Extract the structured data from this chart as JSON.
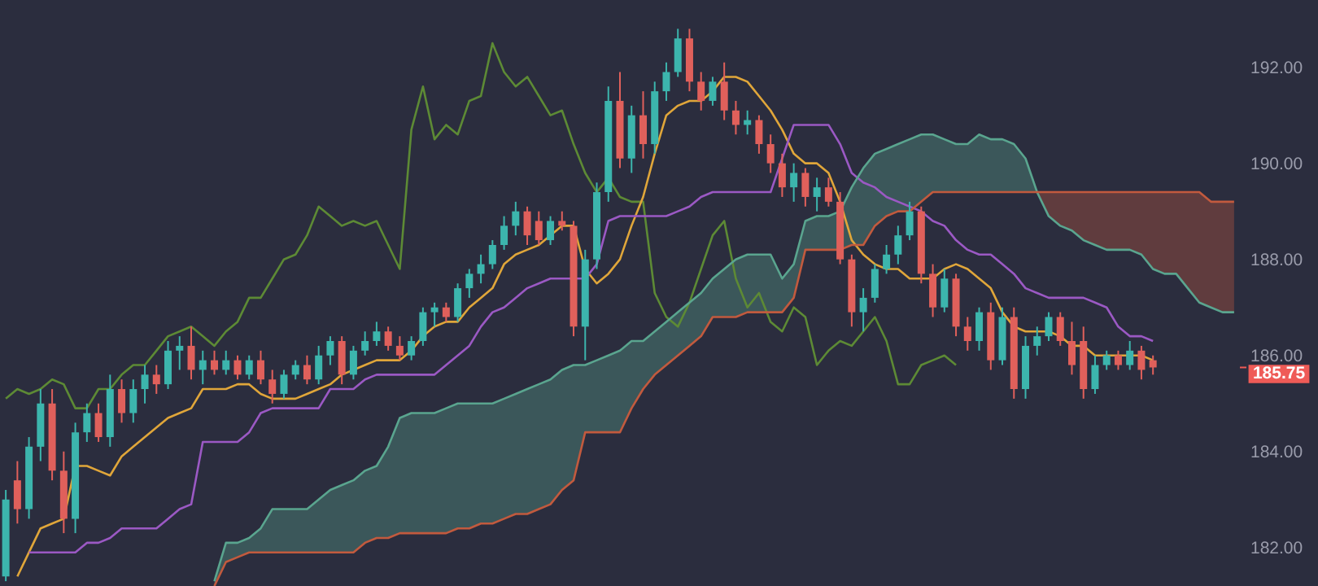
{
  "chart_data": {
    "type": "candlestick",
    "categories": [
      null,
      null,
      null,
      null,
      null,
      null,
      null,
      null,
      null,
      null,
      null,
      null,
      null,
      null,
      null,
      null,
      null,
      null,
      null,
      null,
      null,
      null,
      null,
      null,
      null,
      null,
      null,
      null,
      null,
      null,
      null,
      null,
      null,
      null,
      null,
      null,
      null,
      null,
      null,
      null,
      null,
      null,
      null,
      null,
      null,
      null,
      null,
      null,
      null,
      null,
      null,
      null,
      null,
      null,
      null,
      null,
      null,
      null,
      null,
      null,
      null,
      null,
      null,
      null,
      null,
      null,
      null,
      null,
      null,
      null,
      null,
      null,
      null,
      null,
      null,
      null,
      null,
      null,
      null,
      null,
      null,
      null,
      null,
      null,
      null,
      null,
      null,
      null,
      null,
      null,
      null,
      null,
      null,
      null,
      null,
      null,
      null,
      null,
      null,
      null,
      null,
      null,
      null,
      null,
      null,
      null,
      null
    ],
    "series": [
      {
        "ohlc": [
          [
            181.4,
            183.2,
            181.3,
            183.0
          ],
          [
            183.4,
            183.8,
            182.5,
            182.8
          ],
          [
            182.8,
            184.3,
            182.6,
            184.1
          ],
          [
            184.1,
            185.3,
            183.8,
            185.0
          ],
          [
            185.0,
            185.3,
            183.4,
            183.6
          ],
          [
            183.6,
            184.0,
            182.3,
            182.6
          ],
          [
            182.6,
            184.6,
            182.3,
            184.4
          ],
          [
            184.4,
            185.0,
            184.2,
            184.8
          ],
          [
            184.8,
            185.0,
            184.2,
            184.3
          ],
          [
            184.3,
            185.6,
            184.1,
            185.3
          ],
          [
            185.3,
            185.5,
            184.6,
            184.8
          ],
          [
            184.8,
            185.5,
            184.6,
            185.3
          ],
          [
            185.3,
            185.8,
            185.0,
            185.6
          ],
          [
            185.6,
            185.8,
            185.2,
            185.4
          ],
          [
            185.4,
            186.3,
            185.3,
            186.1
          ],
          [
            186.1,
            186.4,
            185.7,
            186.2
          ],
          [
            186.2,
            186.6,
            185.5,
            185.7
          ],
          [
            185.7,
            186.1,
            185.4,
            185.9
          ],
          [
            185.9,
            186.1,
            185.6,
            185.7
          ],
          [
            185.7,
            186.1,
            185.6,
            185.9
          ],
          [
            185.9,
            186.0,
            185.5,
            185.6
          ],
          [
            185.6,
            186.0,
            185.5,
            185.9
          ],
          [
            185.9,
            186.1,
            185.4,
            185.5
          ],
          [
            185.5,
            185.7,
            185.0,
            185.2
          ],
          [
            185.2,
            185.7,
            185.1,
            185.6
          ],
          [
            185.6,
            185.9,
            185.5,
            185.8
          ],
          [
            185.8,
            186.0,
            185.4,
            185.5
          ],
          [
            185.5,
            186.2,
            185.4,
            186.0
          ],
          [
            186.0,
            186.4,
            185.8,
            186.3
          ],
          [
            186.3,
            186.4,
            185.4,
            185.6
          ],
          [
            185.6,
            186.2,
            185.5,
            186.1
          ],
          [
            186.1,
            186.5,
            186.0,
            186.3
          ],
          [
            186.3,
            186.7,
            186.2,
            186.5
          ],
          [
            186.5,
            186.6,
            186.1,
            186.2
          ],
          [
            186.2,
            186.4,
            185.9,
            186.0
          ],
          [
            186.0,
            186.4,
            185.9,
            186.3
          ],
          [
            186.3,
            187.0,
            186.2,
            186.9
          ],
          [
            186.9,
            187.1,
            186.6,
            187.0
          ],
          [
            187.0,
            187.1,
            186.7,
            186.8
          ],
          [
            186.8,
            187.5,
            186.7,
            187.4
          ],
          [
            187.4,
            187.8,
            187.2,
            187.7
          ],
          [
            187.7,
            188.1,
            187.5,
            187.9
          ],
          [
            187.9,
            188.4,
            187.8,
            188.3
          ],
          [
            188.3,
            188.9,
            188.2,
            188.7
          ],
          [
            188.7,
            189.2,
            188.5,
            189.0
          ],
          [
            189.0,
            189.1,
            188.3,
            188.5
          ],
          [
            188.8,
            189.0,
            188.3,
            188.4
          ],
          [
            188.4,
            188.9,
            188.3,
            188.8
          ],
          [
            188.8,
            189.0,
            188.6,
            188.7
          ],
          [
            188.7,
            188.8,
            186.4,
            186.6
          ],
          [
            186.6,
            188.2,
            185.9,
            188.0
          ],
          [
            188.0,
            189.6,
            187.8,
            189.4
          ],
          [
            189.4,
            191.6,
            189.2,
            191.3
          ],
          [
            191.3,
            191.9,
            189.9,
            190.1
          ],
          [
            190.1,
            191.2,
            189.8,
            191.0
          ],
          [
            191.0,
            191.5,
            190.1,
            190.4
          ],
          [
            190.4,
            191.7,
            190.2,
            191.5
          ],
          [
            191.5,
            192.1,
            191.3,
            191.9
          ],
          [
            191.9,
            192.8,
            191.8,
            192.6
          ],
          [
            192.6,
            192.8,
            191.5,
            191.7
          ],
          [
            191.7,
            191.9,
            191.1,
            191.3
          ],
          [
            191.3,
            191.8,
            191.2,
            191.7
          ],
          [
            191.7,
            192.1,
            190.9,
            191.1
          ],
          [
            191.1,
            191.3,
            190.6,
            190.8
          ],
          [
            190.8,
            191.1,
            190.6,
            190.9
          ],
          [
            190.9,
            191.0,
            190.2,
            190.4
          ],
          [
            190.4,
            190.6,
            189.8,
            190.0
          ],
          [
            190.0,
            190.2,
            189.3,
            189.5
          ],
          [
            189.5,
            190.0,
            189.2,
            189.8
          ],
          [
            189.8,
            189.9,
            189.1,
            189.3
          ],
          [
            189.3,
            189.7,
            189.0,
            189.5
          ],
          [
            189.5,
            189.7,
            189.1,
            189.2
          ],
          [
            189.2,
            189.4,
            187.9,
            188.0
          ],
          [
            188.0,
            188.1,
            186.6,
            186.9
          ],
          [
            186.9,
            187.4,
            186.5,
            187.2
          ],
          [
            187.2,
            187.9,
            187.1,
            187.8
          ],
          [
            187.8,
            188.3,
            187.7,
            188.1
          ],
          [
            188.1,
            188.7,
            187.9,
            188.5
          ],
          [
            188.5,
            189.2,
            188.4,
            189.0
          ],
          [
            189.0,
            189.1,
            187.5,
            187.7
          ],
          [
            187.7,
            187.9,
            186.8,
            187.0
          ],
          [
            187.0,
            187.8,
            186.9,
            187.6
          ],
          [
            187.6,
            187.7,
            186.4,
            186.6
          ],
          [
            186.6,
            186.8,
            186.1,
            186.3
          ],
          [
            186.3,
            187.0,
            186.1,
            186.9
          ],
          [
            186.9,
            187.1,
            185.7,
            185.9
          ],
          [
            185.9,
            187.0,
            185.8,
            186.8
          ],
          [
            186.8,
            187.0,
            185.1,
            185.3
          ],
          [
            185.3,
            186.4,
            185.1,
            186.2
          ],
          [
            186.2,
            186.6,
            186.0,
            186.4
          ],
          [
            186.4,
            186.9,
            186.3,
            186.8
          ],
          [
            186.8,
            186.9,
            186.2,
            186.3
          ],
          [
            186.3,
            186.7,
            185.6,
            185.8
          ],
          [
            186.3,
            186.6,
            185.1,
            185.3
          ],
          [
            185.3,
            186.0,
            185.2,
            185.8
          ],
          [
            185.8,
            186.1,
            185.7,
            186.0
          ],
          [
            186.0,
            186.1,
            185.7,
            185.8
          ],
          [
            185.8,
            186.3,
            185.7,
            186.1
          ],
          [
            186.1,
            186.2,
            185.5,
            185.7
          ],
          [
            185.9,
            186.0,
            185.6,
            185.75
          ],
          null,
          null,
          null,
          null,
          null,
          null,
          null
        ],
        "colors": [
          "#3cb5ad",
          "#e0605b",
          "#3cb5ad",
          "#3cb5ad",
          "#e0605b",
          "#e0605b",
          "#3cb5ad",
          "#3cb5ad",
          "#e0605b",
          "#3cb5ad",
          "#e0605b",
          "#3cb5ad",
          "#3cb5ad",
          "#e0605b",
          "#3cb5ad",
          "#3cb5ad",
          "#e0605b",
          "#3cb5ad",
          "#e0605b",
          "#3cb5ad",
          "#e0605b",
          "#3cb5ad",
          "#e0605b",
          "#e0605b",
          "#3cb5ad",
          "#3cb5ad",
          "#e0605b",
          "#3cb5ad",
          "#3cb5ad",
          "#e0605b",
          "#3cb5ad",
          "#3cb5ad",
          "#3cb5ad",
          "#e0605b",
          "#e0605b",
          "#3cb5ad",
          "#3cb5ad",
          "#3cb5ad",
          "#e0605b",
          "#3cb5ad",
          "#3cb5ad",
          "#3cb5ad",
          "#3cb5ad",
          "#3cb5ad",
          "#3cb5ad",
          "#e0605b",
          "#e0605b",
          "#3cb5ad",
          "#e0605b",
          "#e0605b",
          "#3cb5ad",
          "#3cb5ad",
          "#3cb5ad",
          "#e0605b",
          "#3cb5ad",
          "#e0605b",
          "#3cb5ad",
          "#3cb5ad",
          "#3cb5ad",
          "#e0605b",
          "#e0605b",
          "#3cb5ad",
          "#e0605b",
          "#e0605b",
          "#3cb5ad",
          "#e0605b",
          "#e0605b",
          "#e0605b",
          "#3cb5ad",
          "#e0605b",
          "#3cb5ad",
          "#e0605b",
          "#e0605b",
          "#e0605b",
          "#3cb5ad",
          "#3cb5ad",
          "#3cb5ad",
          "#3cb5ad",
          "#3cb5ad",
          "#e0605b",
          "#e0605b",
          "#3cb5ad",
          "#e0605b",
          "#e0605b",
          "#3cb5ad",
          "#e0605b",
          "#3cb5ad",
          "#e0605b",
          "#3cb5ad",
          "#3cb5ad",
          "#3cb5ad",
          "#e0605b",
          "#e0605b",
          "#e0605b",
          "#3cb5ad",
          "#3cb5ad",
          "#e0605b",
          "#3cb5ad",
          "#e0605b",
          "#e0605b",
          null,
          null,
          null,
          null,
          null,
          null,
          null
        ]
      },
      {
        "type": "line",
        "color": "#5d8a35",
        "values": [
          185.1,
          185.3,
          185.2,
          185.3,
          185.5,
          185.4,
          184.9,
          184.9,
          185.3,
          185.3,
          185.6,
          185.8,
          185.8,
          186.1,
          186.4,
          186.5,
          186.6,
          186.4,
          186.2,
          186.5,
          186.7,
          187.2,
          187.2,
          187.6,
          188.0,
          188.1,
          188.5,
          189.1,
          188.9,
          188.7,
          188.8,
          188.7,
          188.8,
          188.3,
          187.8,
          190.7,
          191.6,
          190.5,
          190.8,
          190.6,
          191.3,
          191.4,
          192.5,
          191.9,
          191.6,
          191.8,
          191.4,
          191.0,
          191.1,
          190.4,
          189.8,
          189.4,
          189.7,
          189.3,
          189.2,
          189.2,
          187.3,
          186.8,
          186.6,
          187.1,
          187.8,
          188.5,
          188.8,
          187.6,
          187.0,
          187.3,
          186.7,
          186.5,
          187.0,
          186.8,
          185.8,
          186.1,
          186.3,
          186.2,
          186.5,
          186.8,
          186.3,
          185.4,
          185.4,
          185.8,
          185.9,
          186.0,
          185.8,
          null,
          null,
          null,
          null,
          null,
          null,
          null,
          null,
          null,
          null,
          null,
          null,
          null,
          null,
          null,
          null,
          null,
          null,
          null,
          null,
          null,
          null,
          null,
          null
        ]
      },
      {
        "type": "line",
        "color": "#e0a63a",
        "values": [
          null,
          181.4,
          181.9,
          182.4,
          182.5,
          182.6,
          183.7,
          183.7,
          183.6,
          183.5,
          183.9,
          184.1,
          184.3,
          184.5,
          184.7,
          184.8,
          184.9,
          185.3,
          185.3,
          185.3,
          185.4,
          185.4,
          185.2,
          185.1,
          185.1,
          185.1,
          185.2,
          185.3,
          185.4,
          185.6,
          185.7,
          185.8,
          185.9,
          185.9,
          185.9,
          186.1,
          186.4,
          186.6,
          186.7,
          186.7,
          187.0,
          187.2,
          187.4,
          187.9,
          188.1,
          188.2,
          188.3,
          188.5,
          188.7,
          188.7,
          187.8,
          187.5,
          187.7,
          188.0,
          188.7,
          189.3,
          190.2,
          191.0,
          191.2,
          191.3,
          191.3,
          191.5,
          191.8,
          191.8,
          191.7,
          191.4,
          191.1,
          190.7,
          190.2,
          190.0,
          190.0,
          189.8,
          189.2,
          188.4,
          188.1,
          187.9,
          187.8,
          187.8,
          187.6,
          187.6,
          187.6,
          187.8,
          187.9,
          187.8,
          187.6,
          187.4,
          186.9,
          186.6,
          186.5,
          186.5,
          186.5,
          186.4,
          186.2,
          186.2,
          186.0,
          186.0,
          186.0,
          186.0,
          186.0,
          185.9,
          null,
          null,
          null,
          null,
          null,
          null,
          null
        ]
      },
      {
        "type": "line",
        "color": "#9b59c4",
        "values": [
          null,
          null,
          181.9,
          181.9,
          181.9,
          181.9,
          181.9,
          182.1,
          182.1,
          182.2,
          182.4,
          182.4,
          182.4,
          182.4,
          182.6,
          182.8,
          182.9,
          184.2,
          184.2,
          184.2,
          184.2,
          184.4,
          184.8,
          184.9,
          184.9,
          184.9,
          184.9,
          184.9,
          185.3,
          185.3,
          185.3,
          185.5,
          185.6,
          185.6,
          185.6,
          185.6,
          185.6,
          185.6,
          185.8,
          186.0,
          186.2,
          186.6,
          186.9,
          187.0,
          187.2,
          187.4,
          187.5,
          187.6,
          187.6,
          187.6,
          187.6,
          187.9,
          188.8,
          188.9,
          188.9,
          188.9,
          188.9,
          188.9,
          189.0,
          189.1,
          189.3,
          189.4,
          189.4,
          189.4,
          189.4,
          189.4,
          189.4,
          190.1,
          190.8,
          190.8,
          190.8,
          190.8,
          190.4,
          189.8,
          189.6,
          189.5,
          189.3,
          189.2,
          189.1,
          189.0,
          188.8,
          188.7,
          188.4,
          188.2,
          188.1,
          188.1,
          187.9,
          187.7,
          187.4,
          187.3,
          187.2,
          187.2,
          187.2,
          187.2,
          187.1,
          187.0,
          186.6,
          186.4,
          186.4,
          186.3,
          null,
          null,
          null,
          null,
          null,
          null,
          null
        ]
      },
      {
        "type": "line",
        "color": "#5aa58f",
        "values": [
          null,
          null,
          null,
          null,
          null,
          null,
          null,
          null,
          null,
          null,
          null,
          null,
          null,
          null,
          null,
          null,
          null,
          null,
          181.3,
          182.1,
          182.1,
          182.2,
          182.4,
          182.8,
          182.8,
          182.8,
          182.8,
          183.0,
          183.2,
          183.3,
          183.4,
          183.6,
          183.7,
          184.1,
          184.7,
          184.8,
          184.8,
          184.8,
          184.9,
          185.0,
          185.0,
          185.0,
          185.0,
          185.1,
          185.2,
          185.3,
          185.4,
          185.5,
          185.7,
          185.8,
          185.8,
          185.9,
          186.0,
          186.1,
          186.3,
          186.3,
          186.5,
          186.7,
          186.9,
          187.1,
          187.3,
          187.6,
          187.8,
          188.0,
          188.1,
          188.1,
          188.1,
          187.6,
          187.9,
          188.8,
          188.9,
          188.9,
          189.0,
          189.5,
          189.9,
          190.2,
          190.3,
          190.4,
          190.5,
          190.6,
          190.6,
          190.5,
          190.4,
          190.4,
          190.6,
          190.5,
          190.5,
          190.4,
          190.1,
          189.4,
          188.9,
          188.7,
          188.6,
          188.4,
          188.3,
          188.2,
          188.2,
          188.2,
          188.1,
          187.8,
          187.7,
          187.7,
          187.4,
          187.1,
          187.0,
          186.9,
          186.9
        ],
        "lower": [
          null,
          null,
          null,
          null,
          null,
          null,
          null,
          null,
          null,
          null,
          null,
          null,
          null,
          null,
          null,
          null,
          null,
          null,
          181.2,
          181.7,
          181.8,
          181.9,
          181.9,
          181.9,
          181.9,
          181.9,
          181.9,
          181.9,
          181.9,
          181.9,
          181.9,
          182.1,
          182.2,
          182.2,
          182.3,
          182.3,
          182.3,
          182.3,
          182.3,
          182.4,
          182.4,
          182.5,
          182.5,
          182.6,
          182.7,
          182.7,
          182.8,
          182.9,
          183.2,
          183.4,
          184.4,
          184.4,
          184.4,
          184.4,
          184.9,
          185.3,
          185.6,
          185.8,
          186.0,
          186.2,
          186.4,
          186.8,
          186.8,
          186.8,
          186.9,
          186.9,
          186.9,
          186.9,
          187.2,
          188.2,
          188.2,
          188.2,
          188.2,
          188.3,
          188.3,
          188.7,
          188.9,
          189.0,
          189.0,
          189.2,
          189.4,
          189.4,
          189.4,
          189.4,
          189.4,
          189.4,
          189.4,
          189.4,
          189.4,
          189.4,
          null,
          null,
          null,
          null,
          null,
          null,
          null,
          null,
          null,
          null,
          null,
          null,
          null,
          null,
          null,
          null,
          null
        ],
        "upper": [
          null,
          null,
          null,
          null,
          null,
          null,
          null,
          null,
          null,
          null,
          null,
          null,
          null,
          null,
          null,
          null,
          null,
          null,
          181.3,
          182.1,
          182.1,
          182.2,
          182.4,
          182.8,
          182.8,
          182.8,
          182.8,
          183.0,
          183.2,
          183.3,
          183.4,
          183.6,
          183.7,
          184.1,
          184.7,
          184.8,
          184.8,
          184.8,
          184.9,
          185.0,
          185.0,
          185.0,
          185.0,
          185.1,
          185.2,
          185.3,
          185.4,
          185.5,
          185.7,
          185.8,
          185.8,
          185.9,
          186.0,
          186.1,
          186.3,
          186.3,
          186.5,
          186.7,
          186.9,
          187.1,
          187.3,
          187.6,
          187.8,
          188.0,
          188.1,
          188.1,
          188.1,
          187.6,
          187.9,
          188.8,
          188.9,
          188.9,
          189.0,
          189.5,
          189.9,
          190.2,
          190.3,
          190.4,
          190.5,
          190.6,
          190.6,
          190.5,
          190.4,
          190.4,
          190.6,
          190.5,
          190.5,
          190.4,
          190.1,
          189.4,
          null,
          null,
          null,
          null,
          null,
          null,
          null,
          null,
          null,
          null,
          null,
          null,
          null,
          null,
          null,
          null,
          null
        ]
      },
      {
        "type": "line",
        "color": "#c25a3e",
        "values": [
          null,
          null,
          null,
          null,
          null,
          null,
          null,
          null,
          null,
          null,
          null,
          null,
          null,
          null,
          null,
          null,
          null,
          null,
          181.2,
          181.7,
          181.8,
          181.9,
          181.9,
          181.9,
          181.9,
          181.9,
          181.9,
          181.9,
          181.9,
          181.9,
          181.9,
          182.1,
          182.2,
          182.2,
          182.3,
          182.3,
          182.3,
          182.3,
          182.3,
          182.4,
          182.4,
          182.5,
          182.5,
          182.6,
          182.7,
          182.7,
          182.8,
          182.9,
          183.2,
          183.4,
          184.4,
          184.4,
          184.4,
          184.4,
          184.9,
          185.3,
          185.6,
          185.8,
          186.0,
          186.2,
          186.4,
          186.8,
          186.8,
          186.8,
          186.9,
          186.9,
          186.9,
          186.9,
          187.2,
          188.2,
          188.2,
          188.2,
          188.2,
          188.3,
          188.3,
          188.7,
          188.9,
          189.0,
          189.0,
          189.2,
          189.4,
          189.4,
          189.4,
          189.4,
          189.4,
          189.4,
          189.4,
          189.4,
          189.4,
          189.4,
          189.4,
          189.4,
          189.4,
          189.4,
          189.4,
          189.4,
          189.4,
          189.4,
          189.4,
          189.4,
          189.4,
          189.4,
          189.4,
          189.4,
          189.2,
          189.2,
          189.2
        ],
        "lower": [
          null,
          null,
          null,
          null,
          null,
          null,
          null,
          null,
          null,
          null,
          null,
          null,
          null,
          null,
          null,
          null,
          null,
          null,
          null,
          null,
          null,
          null,
          null,
          null,
          null,
          null,
          null,
          null,
          null,
          null,
          null,
          null,
          null,
          null,
          null,
          null,
          null,
          null,
          null,
          null,
          null,
          null,
          null,
          null,
          null,
          null,
          null,
          null,
          null,
          null,
          null,
          null,
          null,
          null,
          null,
          null,
          null,
          null,
          null,
          null,
          null,
          null,
          null,
          null,
          null,
          null,
          null,
          null,
          null,
          null,
          null,
          null,
          null,
          null,
          null,
          null,
          null,
          null,
          null,
          null,
          null,
          null,
          null,
          null,
          null,
          null,
          null,
          null,
          null,
          189.4,
          188.9,
          188.7,
          188.6,
          188.4,
          188.3,
          188.2,
          188.2,
          188.2,
          188.1,
          187.8,
          187.7,
          187.7,
          187.4,
          187.1,
          187.0,
          186.9,
          186.9
        ],
        "upper": [
          null,
          null,
          null,
          null,
          null,
          null,
          null,
          null,
          null,
          null,
          null,
          null,
          null,
          null,
          null,
          null,
          null,
          null,
          null,
          null,
          null,
          null,
          null,
          null,
          null,
          null,
          null,
          null,
          null,
          null,
          null,
          null,
          null,
          null,
          null,
          null,
          null,
          null,
          null,
          null,
          null,
          null,
          null,
          null,
          null,
          null,
          null,
          null,
          null,
          null,
          null,
          null,
          null,
          null,
          null,
          null,
          null,
          null,
          null,
          null,
          null,
          null,
          null,
          null,
          null,
          null,
          null,
          null,
          null,
          null,
          null,
          null,
          null,
          null,
          null,
          null,
          null,
          null,
          null,
          null,
          null,
          null,
          null,
          null,
          null,
          null,
          null,
          null,
          null,
          189.4,
          189.4,
          189.4,
          189.4,
          189.4,
          189.4,
          189.4,
          189.4,
          189.4,
          189.4,
          189.4,
          189.4,
          189.4,
          189.4,
          189.4,
          189.2,
          189.2,
          189.2
        ]
      }
    ],
    "ylim": [
      181.2,
      193.4
    ],
    "yticks": [
      {
        "value": 182,
        "label": "182.00"
      },
      {
        "value": 184,
        "label": "184.00"
      },
      {
        "value": 186,
        "label": "186.00"
      },
      {
        "value": 188,
        "label": "188.00"
      },
      {
        "value": 190,
        "label": "190.00"
      },
      {
        "value": 192,
        "label": "192.00"
      }
    ],
    "tick_labels": "y",
    "ref_lines": [
      {
        "axis": "y",
        "value": 185.75,
        "label": "185.75",
        "color": "#ef5b57"
      }
    ]
  }
}
